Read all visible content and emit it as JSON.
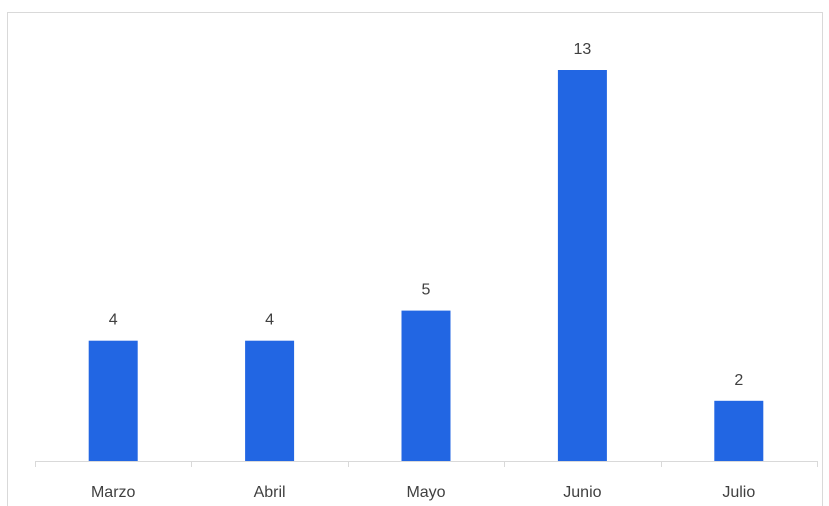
{
  "chart_data": {
    "type": "bar",
    "title": "",
    "xlabel": "",
    "ylabel": "",
    "categories": [
      "Marzo",
      "Abril",
      "Mayo",
      "Junio",
      "Julio"
    ],
    "values": [
      4,
      4,
      5,
      13,
      2
    ],
    "ylim": [
      0,
      14
    ],
    "grid": false,
    "legend": "none",
    "colors": {
      "bar": "#2266e3",
      "axis": "#d9d9d9",
      "text": "#404040"
    }
  }
}
